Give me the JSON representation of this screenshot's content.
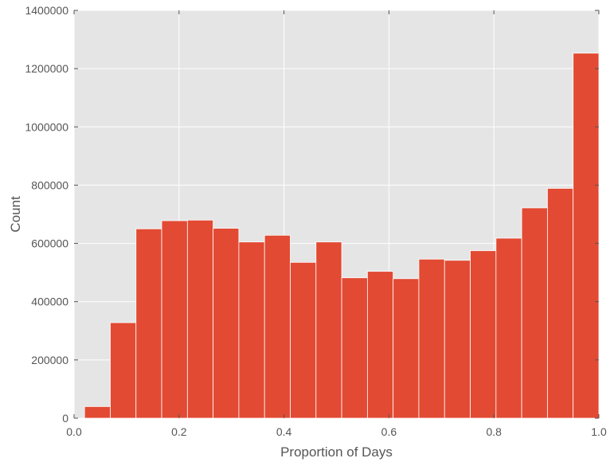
{
  "chart_data": {
    "type": "bar",
    "title": "",
    "xlabel": "Proportion of Days",
    "ylabel": "Count",
    "xlim": [
      0.0,
      1.0
    ],
    "ylim": [
      0,
      1400000
    ],
    "x_ticks": [
      0.0,
      0.2,
      0.4,
      0.6,
      0.8,
      1.0
    ],
    "x_tick_labels": [
      "0.0",
      "0.2",
      "0.4",
      "0.6",
      "0.8",
      "1.0"
    ],
    "y_ticks": [
      0,
      200000,
      400000,
      600000,
      800000,
      1000000,
      1200000,
      1400000
    ],
    "y_tick_labels": [
      "0",
      "200000",
      "400000",
      "600000",
      "800000",
      "1000000",
      "1200000",
      "1400000"
    ],
    "grid": true,
    "bins": [
      {
        "x0": 0.02,
        "x1": 0.069,
        "value": 40000
      },
      {
        "x0": 0.069,
        "x1": 0.118,
        "value": 328000
      },
      {
        "x0": 0.118,
        "x1": 0.167,
        "value": 650000
      },
      {
        "x0": 0.167,
        "x1": 0.216,
        "value": 678000
      },
      {
        "x0": 0.216,
        "x1": 0.265,
        "value": 680000
      },
      {
        "x0": 0.265,
        "x1": 0.314,
        "value": 652000
      },
      {
        "x0": 0.314,
        "x1": 0.363,
        "value": 605000
      },
      {
        "x0": 0.363,
        "x1": 0.412,
        "value": 628000
      },
      {
        "x0": 0.412,
        "x1": 0.461,
        "value": 535000
      },
      {
        "x0": 0.461,
        "x1": 0.51,
        "value": 605000
      },
      {
        "x0": 0.51,
        "x1": 0.559,
        "value": 482000
      },
      {
        "x0": 0.559,
        "x1": 0.608,
        "value": 504000
      },
      {
        "x0": 0.608,
        "x1": 0.657,
        "value": 479000
      },
      {
        "x0": 0.657,
        "x1": 0.706,
        "value": 546000
      },
      {
        "x0": 0.706,
        "x1": 0.755,
        "value": 542000
      },
      {
        "x0": 0.755,
        "x1": 0.804,
        "value": 575000
      },
      {
        "x0": 0.804,
        "x1": 0.853,
        "value": 618000
      },
      {
        "x0": 0.853,
        "x1": 0.902,
        "value": 722000
      },
      {
        "x0": 0.902,
        "x1": 0.951,
        "value": 789000
      },
      {
        "x0": 0.951,
        "x1": 1.0,
        "value": 1253000
      }
    ],
    "colors": {
      "bar": "#e24a33",
      "background": "#e5e5e5",
      "grid": "#ffffff"
    }
  }
}
